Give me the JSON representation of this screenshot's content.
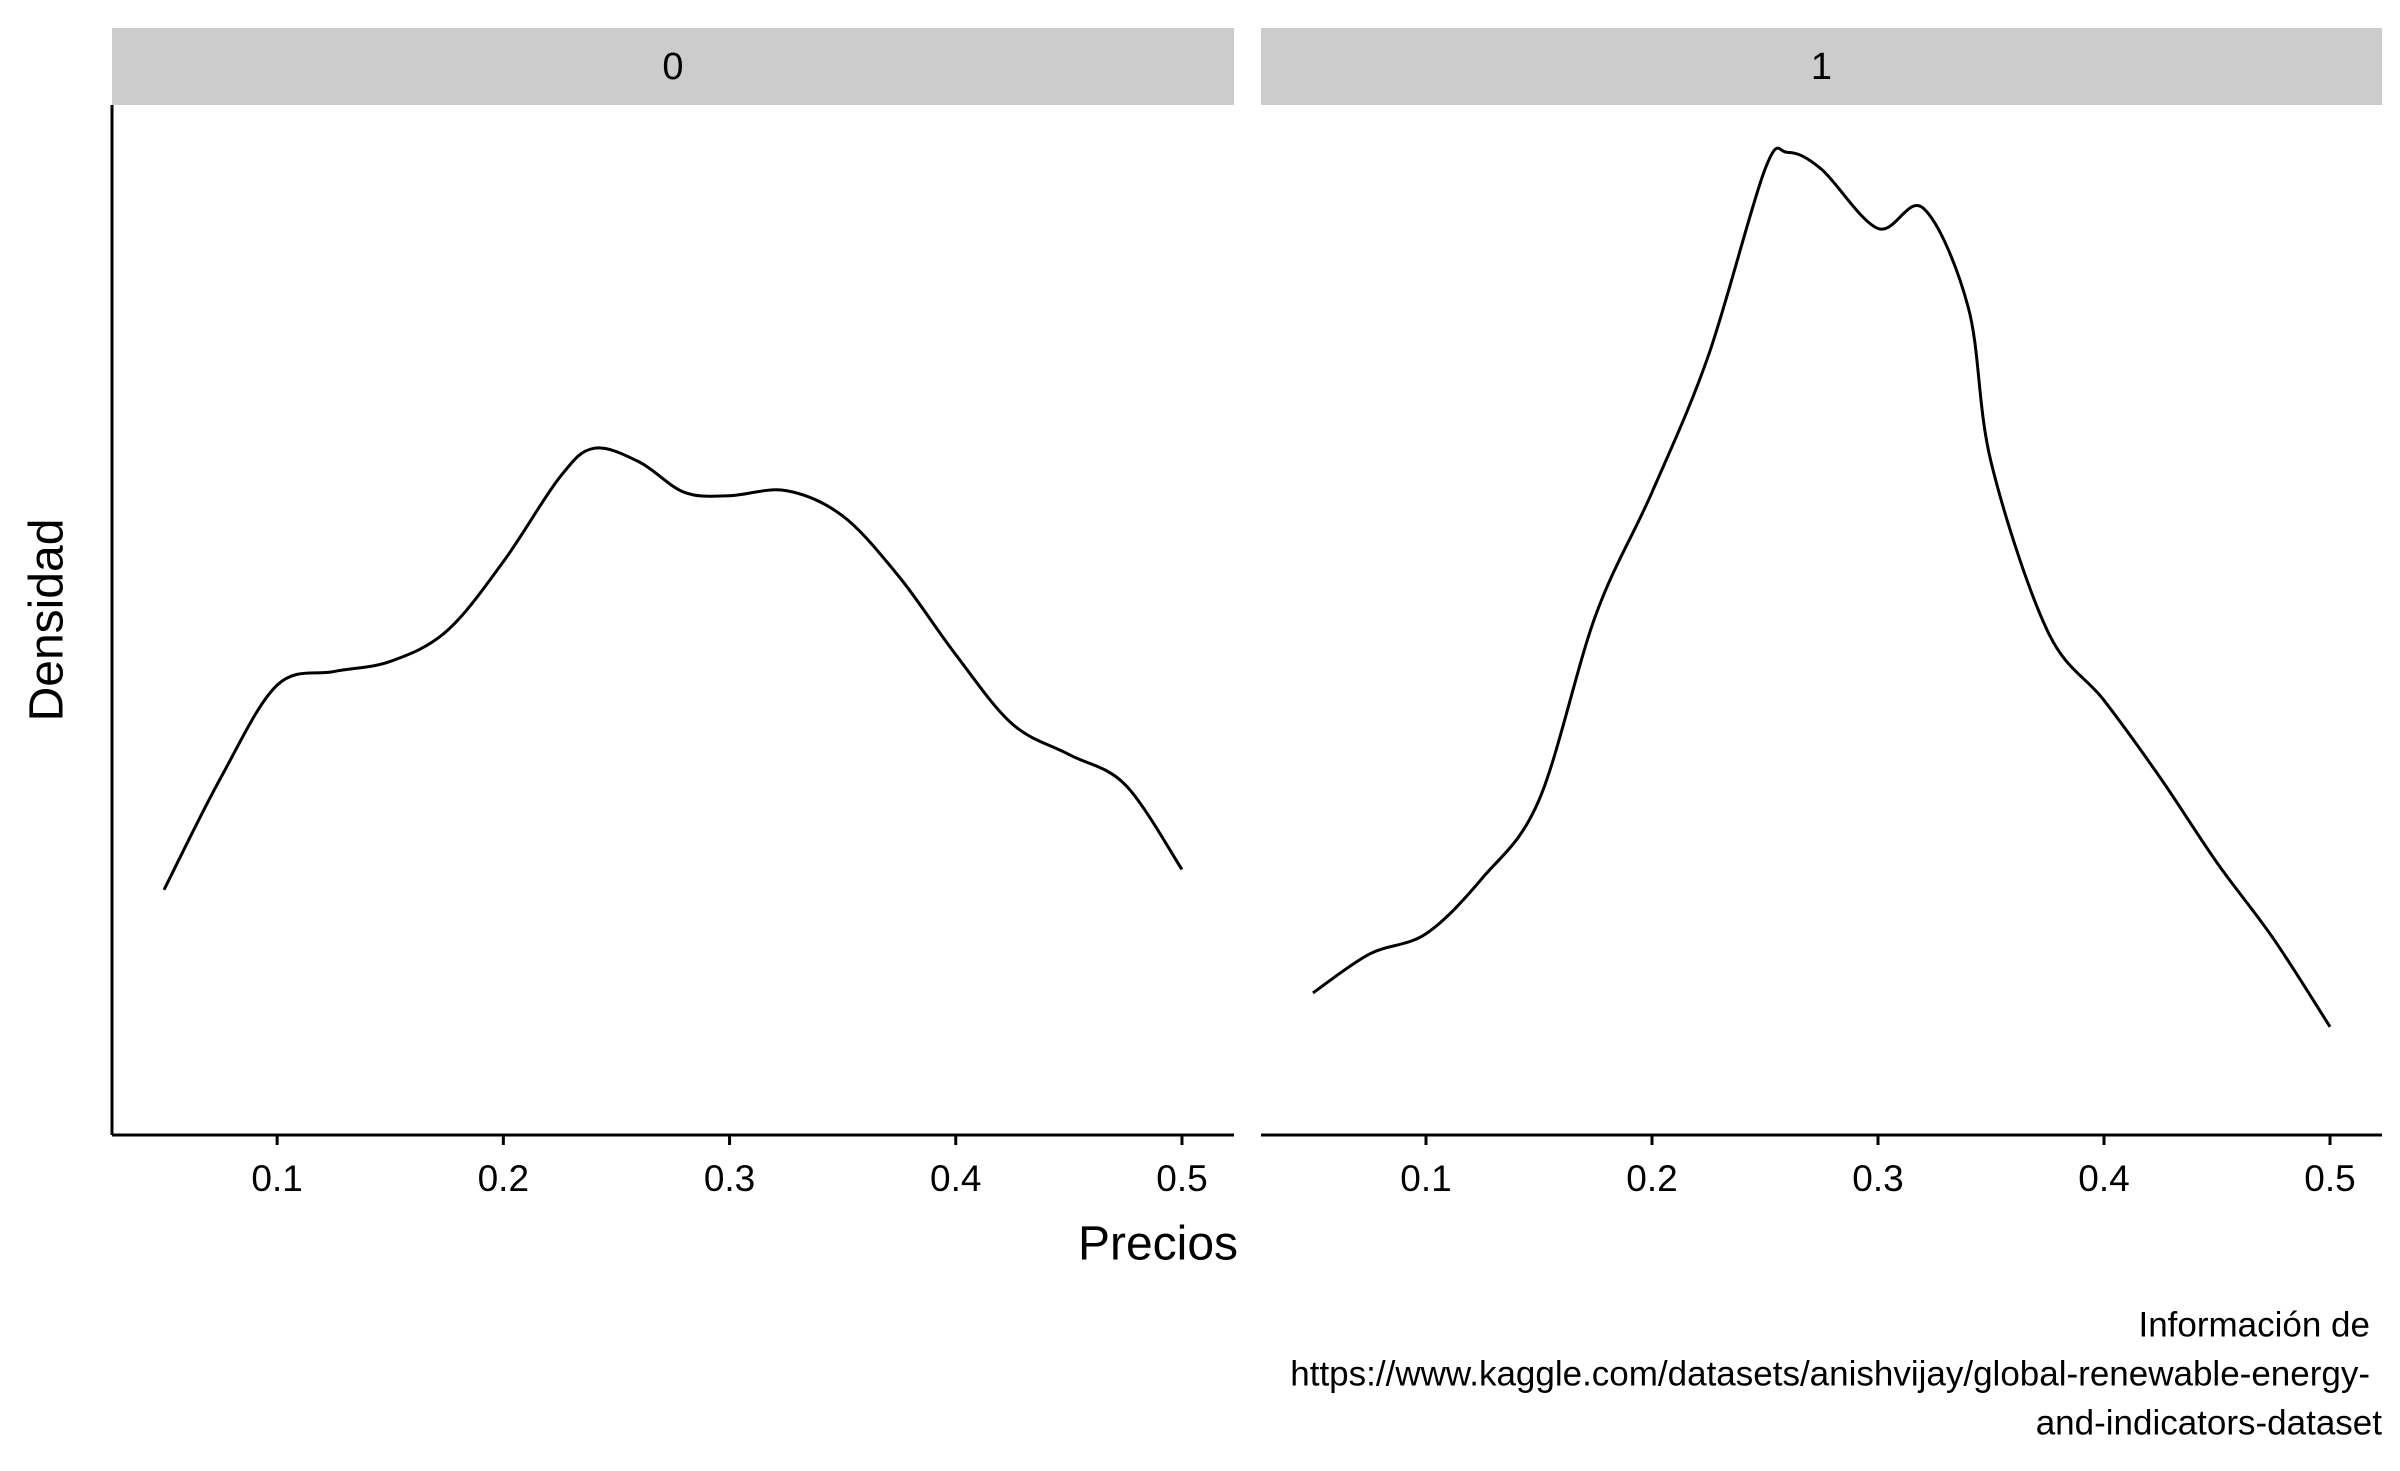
{
  "chart_data": [
    {
      "type": "line",
      "title": "0",
      "x": [
        0.05,
        0.075,
        0.1,
        0.125,
        0.15,
        0.175,
        0.2,
        0.225,
        0.24,
        0.26,
        0.28,
        0.3,
        0.325,
        0.35,
        0.375,
        0.4,
        0.425,
        0.45,
        0.475,
        0.5
      ],
      "values": [
        1.29,
        1.95,
        2.5,
        2.58,
        2.64,
        2.82,
        3.23,
        3.73,
        3.9,
        3.82,
        3.64,
        3.62,
        3.65,
        3.5,
        3.14,
        2.68,
        2.27,
        2.09,
        1.91,
        1.41
      ],
      "color": "#000000",
      "xlim": [
        0.027,
        0.523
      ],
      "ylim": [
        -0.16,
        5.93
      ],
      "xticks": [
        0.1,
        0.2,
        0.3,
        0.4,
        0.5
      ]
    },
    {
      "type": "line",
      "title": "1",
      "x": [
        0.05,
        0.075,
        0.1,
        0.125,
        0.15,
        0.175,
        0.2,
        0.225,
        0.25,
        0.26,
        0.275,
        0.3,
        0.32,
        0.34,
        0.35,
        0.375,
        0.4,
        0.425,
        0.45,
        0.475,
        0.5
      ],
      "values": [
        0.68,
        0.91,
        1.03,
        1.36,
        1.82,
        2.91,
        3.64,
        4.45,
        5.55,
        5.65,
        5.55,
        5.2,
        5.32,
        4.73,
        3.82,
        2.82,
        2.41,
        1.95,
        1.45,
        1.0,
        0.48
      ],
      "color": "#000000",
      "xlim": [
        0.027,
        0.523
      ],
      "ylim": [
        -0.16,
        5.93
      ],
      "xticks": [
        0.1,
        0.2,
        0.3,
        0.4,
        0.5
      ]
    }
  ],
  "x_label": "Precios",
  "y_label": "Densidad",
  "caption": [
    "Información de",
    "https://www.kaggle.com/datasets/anishvijay/global-renewable-energy-",
    "and-indicators-dataset"
  ]
}
